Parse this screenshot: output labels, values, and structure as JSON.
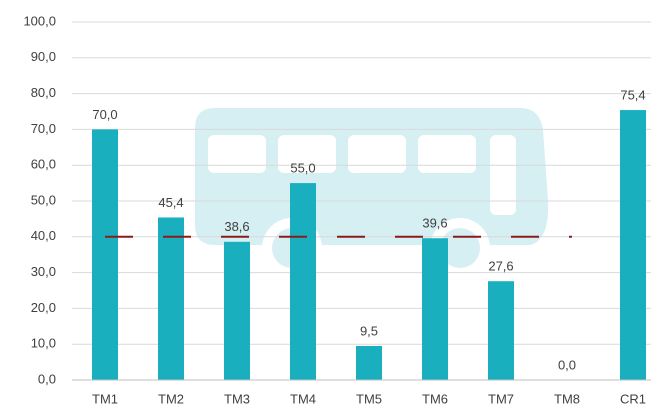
{
  "chart_data": {
    "type": "bar",
    "categories": [
      "TM1",
      "TM2",
      "TM3",
      "TM4",
      "TM5",
      "TM6",
      "TM7",
      "TM8",
      "CR1"
    ],
    "values": [
      70.0,
      45.4,
      38.6,
      55.0,
      9.5,
      39.6,
      27.6,
      0.0,
      75.4
    ],
    "value_labels": [
      "70,0",
      "45,4",
      "38,6",
      "55,0",
      "9,5",
      "39,6",
      "27,6",
      "0,0",
      "75,4"
    ],
    "color": "#1aafbf",
    "reference_line": {
      "value": 40,
      "color": "#8b1a1a"
    },
    "ylim": [
      0,
      100
    ],
    "yticks": [
      {
        "value": 0,
        "label": "0,0"
      },
      {
        "value": 10,
        "label": "10,0"
      },
      {
        "value": 20,
        "label": "20,0"
      },
      {
        "value": 30,
        "label": "30,0"
      },
      {
        "value": 40,
        "label": "40,0"
      },
      {
        "value": 50,
        "label": "50,0"
      },
      {
        "value": 60,
        "label": "60,0"
      },
      {
        "value": 70,
        "label": "70,0"
      },
      {
        "value": 80,
        "label": "80,0"
      },
      {
        "value": 90,
        "label": "90,0"
      },
      {
        "value": 100,
        "label": "100,0"
      }
    ],
    "grid": true
  }
}
